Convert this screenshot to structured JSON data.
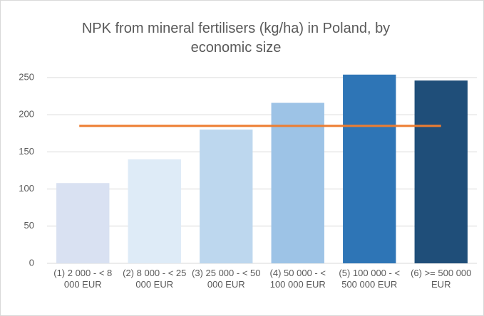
{
  "chart_data": {
    "type": "bar",
    "title": "NPK from mineral fertilisers (kg/ha) in Poland, by economic size",
    "categories": [
      "(1) 2 000 - < 8 000 EUR",
      "(2) 8 000 - < 25 000 EUR",
      "(3) 25 000 - < 50 000 EUR",
      "(4) 50 000 - < 100 000 EUR",
      "(5) 100 000 - < 500 000 EUR",
      "(6) >= 500 000 EUR"
    ],
    "values": [
      108,
      140,
      180,
      216,
      254,
      246
    ],
    "colors": [
      "#d9e1f2",
      "#deebf7",
      "#bdd7ee",
      "#9dc3e6",
      "#2e75b6",
      "#1f4e79"
    ],
    "reference_line": {
      "value": 185,
      "color": "#ed7d31"
    },
    "ylim": [
      0,
      250
    ],
    "yticks": [
      0,
      50,
      100,
      150,
      200,
      250
    ],
    "grid": true
  }
}
